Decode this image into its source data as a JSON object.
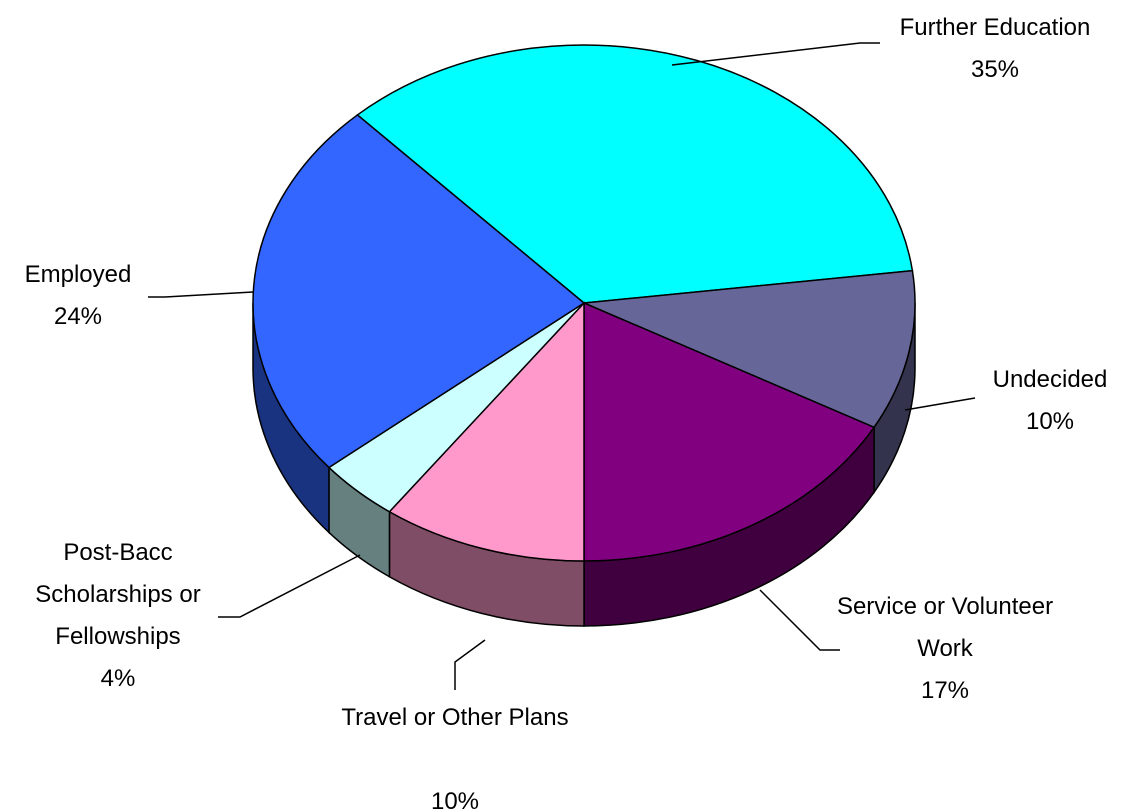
{
  "chart_data": {
    "type": "pie",
    "categories": [
      "Further Education",
      "Undecided",
      "Service or Volunteer Work",
      "Travel or Other Plans",
      "Post-Bacc Scholarships or Fellowships",
      "Employed"
    ],
    "values": [
      35,
      10,
      17,
      10,
      4,
      24
    ],
    "value_labels": [
      "35%",
      "10%",
      "17%",
      "10%",
      "4%",
      "24%"
    ],
    "colors": [
      "#00ffff",
      "#666699",
      "#800080",
      "#ff99cc",
      "#ccffff",
      "#3366ff"
    ]
  }
}
